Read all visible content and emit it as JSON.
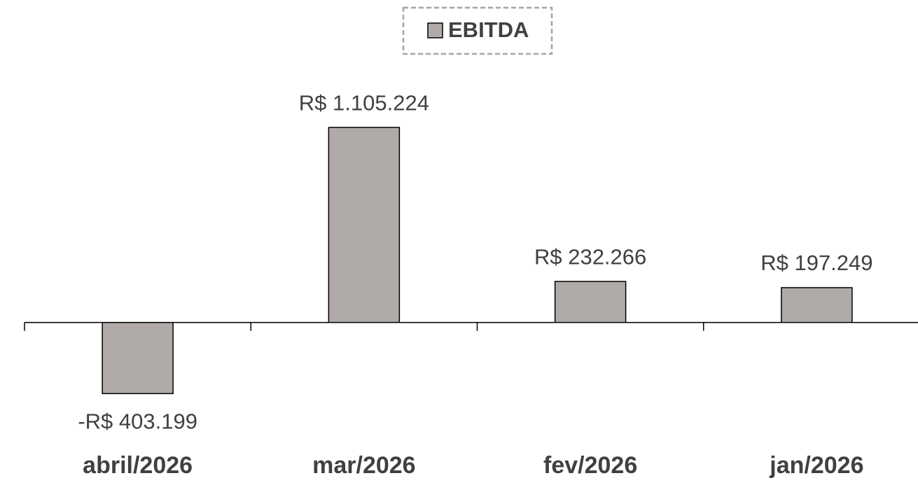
{
  "chart_data": {
    "type": "bar",
    "series": [
      {
        "name": "EBITDA",
        "color": "#b0aaa8",
        "values": [
          -403199,
          1105224,
          232266,
          197249
        ],
        "value_labels": [
          "-R$ 403.199",
          "R$ 1.105.224",
          "R$ 232.266",
          "R$ 197.249"
        ]
      }
    ],
    "categories": [
      "abril/2026",
      "mar/2026",
      "fev/2026",
      "jan/2026"
    ],
    "ylim": [
      -600000,
      1300000
    ],
    "legend": "top"
  }
}
